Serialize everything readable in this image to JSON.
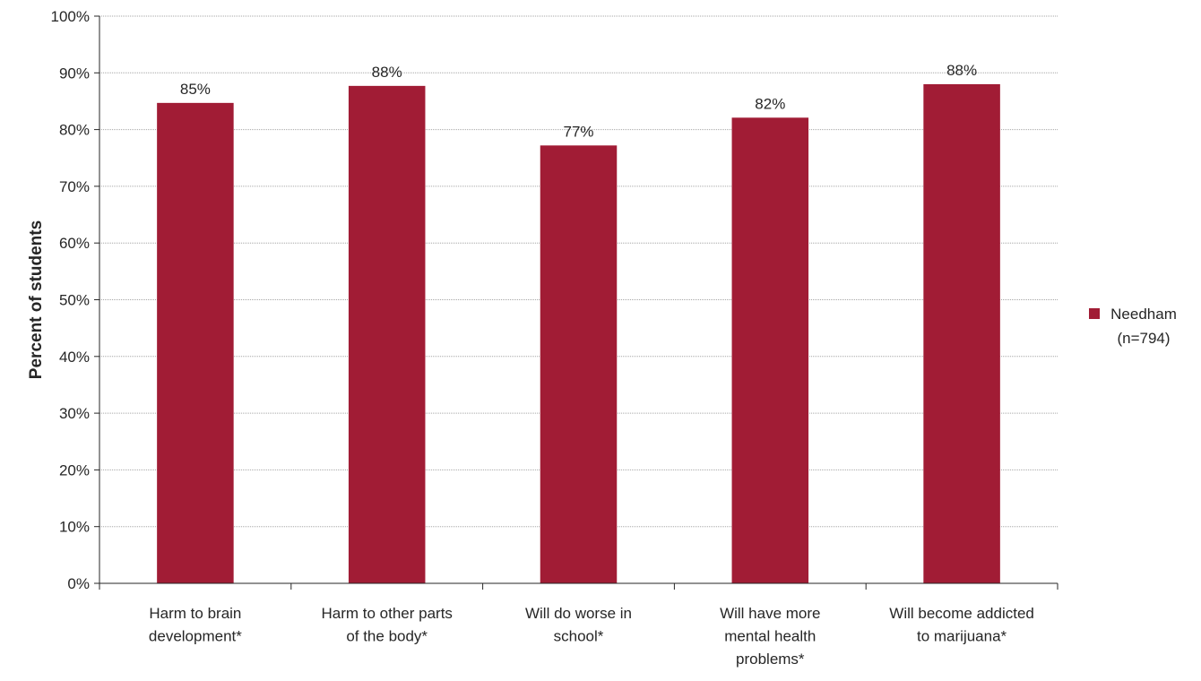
{
  "chart_data": {
    "type": "bar",
    "categories": [
      [
        "Harm to brain",
        "development*"
      ],
      [
        "Harm to other parts",
        "of the body*"
      ],
      [
        "Will do worse in",
        "school*"
      ],
      [
        "Will have more",
        "mental health",
        "problems*"
      ],
      [
        "Will become addicted",
        "to marijuana*"
      ]
    ],
    "series": [
      {
        "name": "Needham (n=794)",
        "legend_lines": [
          "Needham",
          "(n=794)"
        ],
        "color": "#a11c35",
        "values": [
          84.7,
          87.7,
          77.2,
          82.1,
          88.0
        ],
        "data_labels": [
          "85%",
          "88%",
          "77%",
          "82%",
          "88%"
        ]
      }
    ],
    "ylabel": "Percent of students",
    "xlabel": "",
    "ylim": [
      0,
      100
    ],
    "yticks": [
      0,
      10,
      20,
      30,
      40,
      50,
      60,
      70,
      80,
      90,
      100
    ],
    "ytick_labels": [
      "0%",
      "10%",
      "20%",
      "30%",
      "40%",
      "50%",
      "60%",
      "70%",
      "80%",
      "90%",
      "100%"
    ],
    "grid": true,
    "legend_position": "right"
  }
}
